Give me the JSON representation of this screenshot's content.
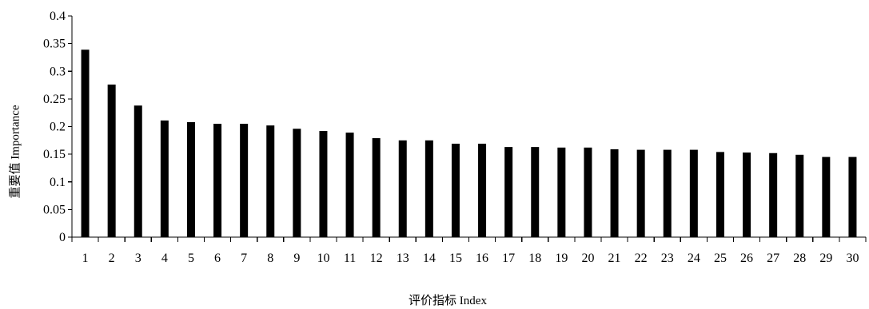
{
  "chart_data": {
    "type": "bar",
    "title": "",
    "xlabel": "评价指标 Index",
    "ylabel": "重要值 Importance",
    "categories": [
      "1",
      "2",
      "3",
      "4",
      "5",
      "6",
      "7",
      "8",
      "9",
      "10",
      "11",
      "12",
      "13",
      "14",
      "15",
      "16",
      "17",
      "18",
      "19",
      "20",
      "21",
      "22",
      "23",
      "24",
      "25",
      "26",
      "27",
      "28",
      "29",
      "30"
    ],
    "values": [
      0.339,
      0.276,
      0.238,
      0.211,
      0.208,
      0.205,
      0.205,
      0.202,
      0.196,
      0.192,
      0.189,
      0.179,
      0.175,
      0.175,
      0.169,
      0.169,
      0.163,
      0.163,
      0.162,
      0.162,
      0.159,
      0.158,
      0.158,
      0.158,
      0.154,
      0.153,
      0.152,
      0.149,
      0.145,
      0.145
    ],
    "ylim": [
      0,
      0.4
    ],
    "yticks": [
      "0",
      "0.05",
      "0.1",
      "0.15",
      "0.2",
      "0.25",
      "0.3",
      "0.35",
      "0.4"
    ],
    "grid": false
  },
  "colors": {
    "bar": "#000000",
    "axis": "#000000",
    "background": "#ffffff"
  }
}
